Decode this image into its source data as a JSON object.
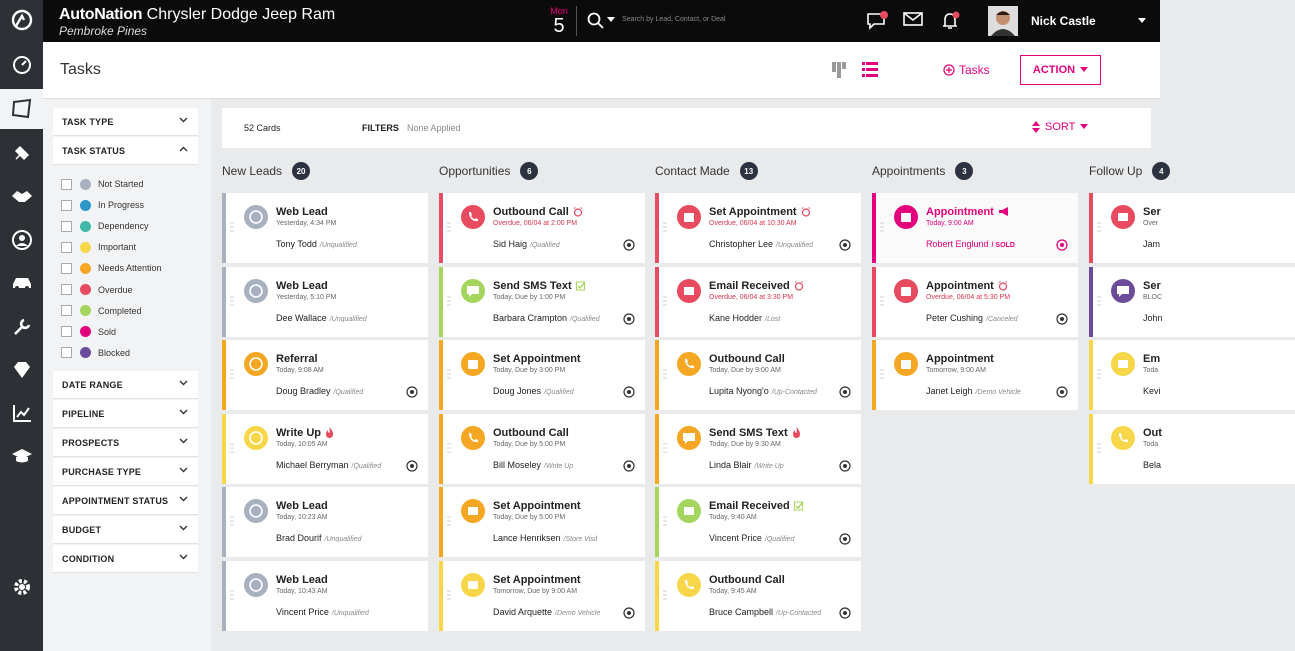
{
  "topbar": {
    "brand_logo": "AutoNation",
    "brand_name": "Chrysler Dodge Jeep Ram",
    "location": "Pembroke Pines",
    "date_dow": "Mon",
    "date_day": "5",
    "search_placeholder": "Search by Lead, Contact, or Deal",
    "user_name": "Nick Castle",
    "accent_color": "#e4007c"
  },
  "header": {
    "title": "Tasks",
    "add_task": "Tasks",
    "action": "ACTION"
  },
  "filters": {
    "task_type": "TASK TYPE",
    "task_status": "TASK STATUS",
    "statuses": [
      {
        "label": "Not Started",
        "color": "#a8b1bf"
      },
      {
        "label": "In Progress",
        "color": "#2e97c9"
      },
      {
        "label": "Dependency",
        "color": "#3fb8a9"
      },
      {
        "label": "Important",
        "color": "#f7d64a"
      },
      {
        "label": "Needs Attention",
        "color": "#f5a623"
      },
      {
        "label": "Overdue",
        "color": "#e84a5f"
      },
      {
        "label": "Completed",
        "color": "#a4d65e"
      },
      {
        "label": "Sold",
        "color": "#e4007c"
      },
      {
        "label": "Blocked",
        "color": "#6b4b9a"
      }
    ],
    "sections": [
      "DATE RANGE",
      "PIPELINE",
      "PROSPECTS",
      "PURCHASE TYPE",
      "APPOINTMENT STATUS",
      "BUDGET",
      "CONDITION"
    ]
  },
  "toolbar": {
    "cards_count": "52 Cards",
    "filters_label": "FILTERS",
    "filters_value": "None Applied",
    "sort": "SORT"
  },
  "columns": [
    {
      "title": "New Leads",
      "count": "20",
      "cards": [
        {
          "title": "Web Lead",
          "sub": "Yesterday, 4:34 PM",
          "name": "Tony Todd",
          "status": "/Unqualified",
          "color": "#a8b1bf",
          "icon": "person-icon",
          "brand": ""
        },
        {
          "title": "Web Lead",
          "sub": "Yesterday, 5:10 PM",
          "name": "Dee Wallace",
          "status": "/Unqualified",
          "color": "#a8b1bf",
          "icon": "person-icon",
          "brand": ""
        },
        {
          "title": "Referral",
          "sub": "Today, 9:08 AM",
          "name": "Doug Bradley",
          "status": "/Qualified",
          "color": "#f5a623",
          "icon": "person-icon",
          "brand": "bmw"
        },
        {
          "title": "Write Up",
          "sub": "Today, 10:05 AM",
          "name": "Michael Berryman",
          "status": "/Qualified",
          "color": "#f7d64a",
          "icon": "person-icon",
          "brand": "mercedes",
          "flag": "fire"
        },
        {
          "title": "Web Lead",
          "sub": "Today, 10:23 AM",
          "name": "Brad Dourif",
          "status": "/Unqualified",
          "color": "#a8b1bf",
          "icon": "person-icon",
          "brand": ""
        },
        {
          "title": "Web Lead",
          "sub": "Today, 10:43 AM",
          "name": "Vincent Price",
          "status": "/Unqualified",
          "color": "#a8b1bf",
          "icon": "person-icon",
          "brand": ""
        }
      ]
    },
    {
      "title": "Opportunities",
      "count": "6",
      "cards": [
        {
          "title": "Outbound Call",
          "sub": "Overdue, 06/04 at 2:00 PM",
          "name": "Sid Haig",
          "status": "/Qualified",
          "color": "#e84a5f",
          "icon": "phone-icon",
          "brand": "honda",
          "overdue": true,
          "flag": "alarm"
        },
        {
          "title": "Send SMS Text",
          "sub": "Today, Due by 1:00 PM",
          "name": "Barbara Crampton",
          "status": "/Qualified",
          "color": "#a4d65e",
          "icon": "chat-icon",
          "brand": "toyota",
          "flag": "check"
        },
        {
          "title": "Set Appointment",
          "sub": "Today, Due by 3:00 PM",
          "name": "Doug Jones",
          "status": "/Qualified",
          "color": "#f5a623",
          "icon": "calendar-icon",
          "brand": "tesla"
        },
        {
          "title": "Outbound Call",
          "sub": "Today, Due by 5:00 PM",
          "name": "Bill Moseley",
          "status": "/Write Up",
          "color": "#f5a623",
          "icon": "phone-icon",
          "brand": "nissan"
        },
        {
          "title": "Set Appointment",
          "sub": "Today, Due by 5:00 PM",
          "name": "Lance Henriksen",
          "status": "/Store Visit",
          "color": "#f5a623",
          "icon": "mail-icon",
          "brand": ""
        },
        {
          "title": "Set Appointment",
          "sub": "Tomorrow, Due by 9:00 AM",
          "name": "David Arquette",
          "status": "/Demo Vehicle",
          "color": "#f7d64a",
          "icon": "mail-icon",
          "brand": "audi"
        }
      ]
    },
    {
      "title": "Contact Made",
      "count": "13",
      "cards": [
        {
          "title": "Set Appointment",
          "sub": "Overdue, 06/04 at 10:30 AM",
          "name": "Christopher Lee",
          "status": "/Unqualified",
          "color": "#e84a5f",
          "icon": "calendar-icon",
          "brand": "chevrolet",
          "overdue": true,
          "flag": "alarm"
        },
        {
          "title": "Email Received",
          "sub": "Overdue, 06/04 at 3:30 PM",
          "name": "Kane Hodder",
          "status": "/Lost",
          "color": "#e84a5f",
          "icon": "mail-icon",
          "brand": "",
          "overdue": true,
          "flag": "alarm"
        },
        {
          "title": "Outbound Call",
          "sub": "Today, Due by 9:00 AM",
          "name": "Lupita Nyong'o",
          "status": "/Up-Contacted",
          "color": "#f5a623",
          "icon": "phone-icon",
          "brand": "nissan"
        },
        {
          "title": "Send SMS Text",
          "sub": "Today, Due by 9:30 AM",
          "name": "Linda Blair",
          "status": "/Write Up",
          "color": "#f5a623",
          "icon": "chat-icon",
          "brand": "bmw",
          "flag": "fire"
        },
        {
          "title": "Email Received",
          "sub": "Today, 9:40 AM",
          "name": "Vincent Price",
          "status": "/Qualified",
          "color": "#a4d65e",
          "icon": "mail-icon",
          "brand": "infiniti",
          "flag": "check"
        },
        {
          "title": "Outbound Call",
          "sub": "Today, 9:45 AM",
          "name": "Bruce Campbell",
          "status": "/Up-Contacted",
          "color": "#f7d64a",
          "icon": "phone-icon",
          "brand": "mercedes"
        }
      ]
    },
    {
      "title": "Appointments",
      "count": "3",
      "cards": [
        {
          "title": "Appointment",
          "sub": "Today, 9:00 AM",
          "name": "Robert Englund",
          "status": "/ SOLD",
          "color": "#e4007c",
          "icon": "calendar-icon",
          "brand": "acura",
          "sold": true,
          "flag": "megaphone"
        },
        {
          "title": "Appointment",
          "sub": "Overdue, 06/04 at 5:30 PM",
          "name": "Peter Cushing",
          "status": "/Canceled",
          "color": "#e84a5f",
          "icon": "calendar-icon",
          "brand": "nissan",
          "overdue": true,
          "flag": "alarm"
        },
        {
          "title": "Appointment",
          "sub": "Tomorrow, 9:00 AM",
          "name": "Janet Leigh",
          "status": "/Demo Vehicle",
          "color": "#f5a623",
          "icon": "calendar-icon",
          "brand": "hyundai"
        }
      ]
    },
    {
      "title": "Follow Up",
      "count": "4",
      "cards": [
        {
          "title": "Ser",
          "sub": "Over",
          "name": "Jam",
          "status": "",
          "color": "#e84a5f",
          "icon": "mail-icon",
          "brand": ""
        },
        {
          "title": "Ser",
          "sub": "BLOC",
          "name": "John",
          "status": "",
          "color": "#6b4b9a",
          "icon": "chat-icon",
          "brand": ""
        },
        {
          "title": "Em",
          "sub": "Toda",
          "name": "Kevi",
          "status": "",
          "color": "#f7d64a",
          "icon": "mail-icon",
          "brand": ""
        },
        {
          "title": "Out",
          "sub": "Toda",
          "name": "Bela",
          "status": "",
          "color": "#f7d64a",
          "icon": "phone-icon",
          "brand": ""
        }
      ]
    }
  ]
}
